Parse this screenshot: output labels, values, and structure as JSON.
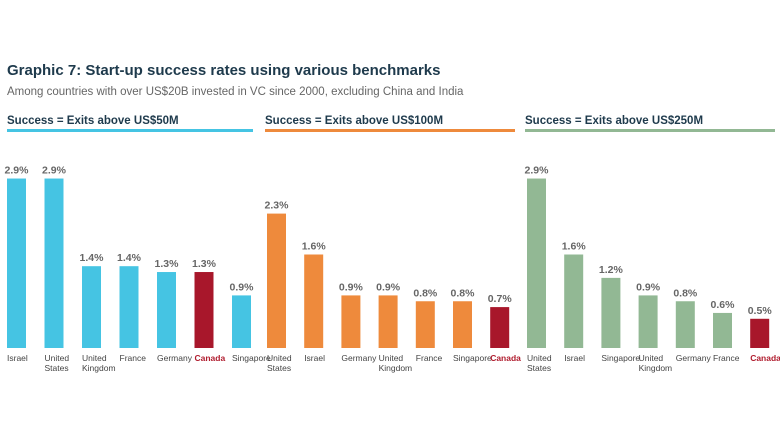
{
  "title": "Graphic 7: Start-up success rates using various benchmarks",
  "subtitle": "Among countries with over US$20B invested in VC since 2000, excluding China and India",
  "colors": {
    "highlight": "#a8172b"
  },
  "chart_data": [
    {
      "type": "bar",
      "title": "Success = Exits above US$50M",
      "color": "#45c4e3",
      "categories": [
        "Israel",
        "United States",
        "United Kingdom",
        "France",
        "Germany",
        "Canada",
        "Singapore"
      ],
      "values": [
        2.9,
        2.9,
        1.4,
        1.4,
        1.3,
        1.3,
        0.9
      ],
      "value_labels": [
        "2.9%",
        "2.9%",
        "1.4%",
        "1.4%",
        "1.3%",
        "1.3%",
        "0.9%"
      ],
      "highlight": "Canada",
      "ylim": [
        0,
        3.2
      ]
    },
    {
      "type": "bar",
      "title": "Success = Exits above US$100M",
      "color": "#ee8a3c",
      "categories": [
        "United States",
        "Israel",
        "Germany",
        "United Kingdom",
        "France",
        "Singapore",
        "Canada"
      ],
      "values": [
        2.3,
        1.6,
        0.9,
        0.9,
        0.8,
        0.8,
        0.7
      ],
      "value_labels": [
        "2.3%",
        "1.6%",
        "0.9%",
        "0.9%",
        "0.8%",
        "0.8%",
        "0.7%"
      ],
      "highlight": "Canada",
      "ylim": [
        0,
        3.2
      ]
    },
    {
      "type": "bar",
      "title": "Success = Exits above US$250M",
      "color": "#92b894",
      "categories": [
        "United States",
        "Israel",
        "Singapore",
        "United Kingdom",
        "Germany",
        "France",
        "Canada"
      ],
      "values": [
        2.9,
        1.6,
        1.2,
        0.9,
        0.8,
        0.6,
        0.5
      ],
      "value_labels": [
        "2.9%",
        "1.6%",
        "1.2%",
        "0.9%",
        "0.8%",
        "0.6%",
        "0.5%"
      ],
      "highlight": "Canada",
      "ylim": [
        0,
        3.2
      ]
    }
  ]
}
